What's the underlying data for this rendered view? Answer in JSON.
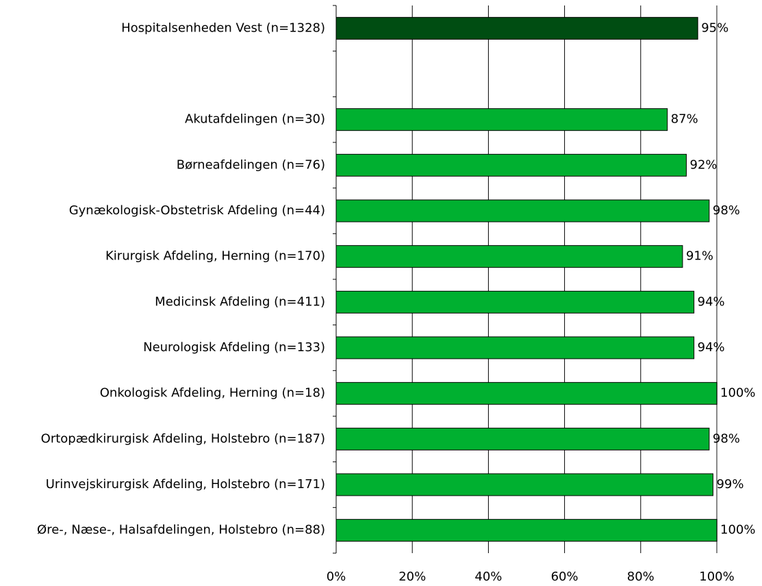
{
  "chart_data": {
    "type": "bar",
    "orientation": "horizontal",
    "categories": [
      "Hospitalsenheden Vest (n=1328)",
      "",
      "Akutafdelingen (n=30)",
      "Børneafdelingen (n=76)",
      "Gynækologisk-Obstetrisk Afdeling (n=44)",
      "Kirurgisk Afdeling, Herning (n=170)",
      "Medicinsk Afdeling (n=411)",
      "Neurologisk Afdeling (n=133)",
      "Onkologisk Afdeling, Herning (n=18)",
      "Ortopædkirurgisk Afdeling, Holstebro (n=187)",
      "Urinvejskirurgisk Afdeling, Holstebro (n=171)",
      "Øre-, Næse-, Halsafdelingen, Holstebro (n=88)"
    ],
    "values": [
      95,
      null,
      87,
      92,
      98,
      91,
      94,
      94,
      100,
      98,
      99,
      100
    ],
    "value_labels": [
      "95%",
      "",
      "87%",
      "92%",
      "98%",
      "91%",
      "94%",
      "94%",
      "100%",
      "98%",
      "99%",
      "100%"
    ],
    "xticks": [
      "0%",
      "20%",
      "40%",
      "60%",
      "80%",
      "100%"
    ],
    "xlim": [
      0,
      100
    ],
    "grid": true,
    "legend": "none",
    "colors": {
      "total_bar": "#004d12",
      "department_bar": "#00b030",
      "gridline": "#000000",
      "end_gridline": "#888888"
    },
    "xlabel": "",
    "ylabel": "",
    "title": ""
  }
}
